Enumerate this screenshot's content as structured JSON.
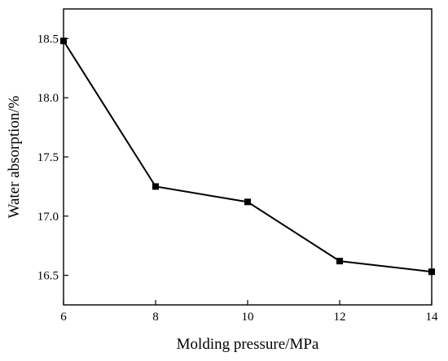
{
  "chart_data": {
    "type": "line",
    "xlabel": "Molding pressure/MPa",
    "ylabel": "Water absorption/%",
    "xlim": [
      6,
      14
    ],
    "ylim": [
      16.25,
      18.75
    ],
    "xticks": [
      6,
      8,
      10,
      12,
      14
    ],
    "yticks": [
      16.5,
      17.0,
      17.5,
      18.0,
      18.5
    ],
    "xtick_labels": [
      "6",
      "8",
      "10",
      "12",
      "14"
    ],
    "ytick_labels": [
      "16.5",
      "17.0",
      "17.5",
      "18.0",
      "18.5"
    ],
    "grid": false,
    "series": [
      {
        "x": [
          6,
          8,
          10,
          12,
          14
        ],
        "values": [
          18.48,
          17.25,
          17.12,
          16.62,
          16.53
        ],
        "marker": "square",
        "color": "#000000"
      }
    ]
  }
}
